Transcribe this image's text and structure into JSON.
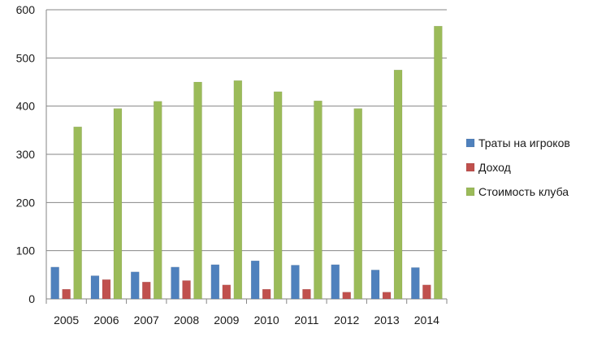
{
  "chart_data": {
    "type": "bar",
    "title": "",
    "xlabel": "",
    "ylabel": "",
    "categories": [
      "2005",
      "2006",
      "2007",
      "2008",
      "2009",
      "2010",
      "2011",
      "2012",
      "2013",
      "2014"
    ],
    "series": [
      {
        "name": "Траты на игроков",
        "color": "#4f81bd",
        "values": [
          66,
          48,
          56,
          66,
          71,
          79,
          70,
          71,
          60,
          65
        ]
      },
      {
        "name": "Доход",
        "color": "#c0504d",
        "values": [
          20,
          40,
          35,
          38,
          29,
          20,
          20,
          14,
          14,
          29
        ]
      },
      {
        "name": "Стоимость клуба",
        "color": "#9bbb59",
        "values": [
          357,
          395,
          410,
          450,
          453,
          430,
          411,
          395,
          475,
          566
        ]
      }
    ],
    "ylim": [
      0,
      600
    ],
    "yticks": [
      0,
      100,
      200,
      300,
      400,
      500,
      600
    ],
    "grid": true,
    "legend_position": "right"
  }
}
